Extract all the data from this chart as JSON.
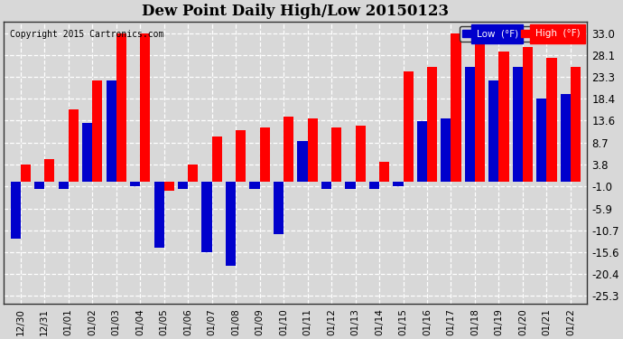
{
  "title": "Dew Point Daily High/Low 20150123",
  "copyright": "Copyright 2015 Cartronics.com",
  "categories": [
    "12/30",
    "12/31",
    "01/01",
    "01/02",
    "01/03",
    "01/04",
    "01/05",
    "01/06",
    "01/07",
    "01/08",
    "01/09",
    "01/10",
    "01/11",
    "01/12",
    "01/13",
    "01/14",
    "01/15",
    "01/16",
    "01/17",
    "01/18",
    "01/19",
    "01/20",
    "01/21",
    "01/22"
  ],
  "high": [
    3.8,
    5.0,
    16.0,
    22.5,
    33.0,
    33.0,
    -2.0,
    3.8,
    10.0,
    11.5,
    12.0,
    14.5,
    14.0,
    12.0,
    12.5,
    4.5,
    24.5,
    25.5,
    33.0,
    33.0,
    29.0,
    30.0,
    27.5,
    25.5
  ],
  "low": [
    -12.5,
    -1.5,
    -1.5,
    13.0,
    22.5,
    -1.0,
    -14.5,
    -1.5,
    -15.5,
    -18.5,
    -1.5,
    -11.5,
    9.0,
    -1.5,
    -1.5,
    -1.5,
    -1.0,
    13.5,
    14.0,
    25.5,
    22.5,
    25.5,
    18.5,
    19.5
  ],
  "high_color": "#ff0000",
  "low_color": "#0000cc",
  "bg_color": "#d8d8d8",
  "plot_bg": "#d8d8d8",
  "grid_color": "#ffffff",
  "yticks": [
    33.0,
    28.1,
    23.3,
    18.4,
    13.6,
    8.7,
    3.8,
    -1.0,
    -5.9,
    -10.7,
    -15.6,
    -20.4,
    -25.3
  ],
  "ylim": [
    -27,
    35.5
  ],
  "bar_width": 0.42,
  "legend_low_label": "Low  (°F)",
  "legend_high_label": "High  (°F)"
}
